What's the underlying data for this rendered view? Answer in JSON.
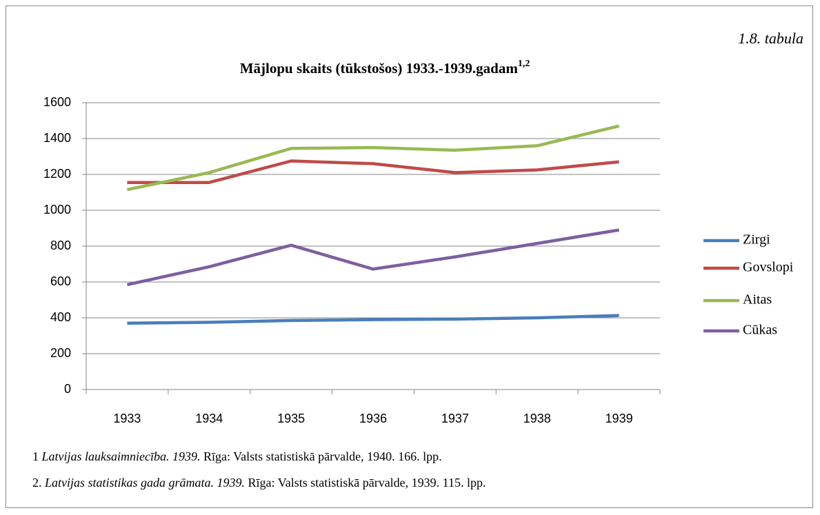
{
  "chart_data": {
    "type": "line",
    "table_label": "1.8. tabula",
    "title": "Mājlopu skaits (tūkstošos) 1933.-1939.gadam",
    "title_note": "1,2",
    "categories": [
      "1933",
      "1934",
      "1935",
      "1936",
      "1937",
      "1938",
      "1939"
    ],
    "series": [
      {
        "name": "Zirgi",
        "color": "#4a7ebb",
        "values": [
          370,
          375,
          385,
          390,
          393,
          400,
          413
        ]
      },
      {
        "name": "Govslopi",
        "color": "#be4b48",
        "values": [
          1155,
          1155,
          1275,
          1260,
          1210,
          1225,
          1270
        ]
      },
      {
        "name": "Aitas",
        "color": "#98b954",
        "values": [
          1115,
          1210,
          1345,
          1350,
          1335,
          1360,
          1470
        ]
      },
      {
        "name": "Cūkas",
        "color": "#7d5fa0",
        "values": [
          585,
          685,
          805,
          672,
          740,
          815,
          890
        ]
      }
    ],
    "ylim": [
      0,
      1600
    ],
    "yticks": [
      0,
      200,
      400,
      600,
      800,
      1000,
      1200,
      1400,
      1600
    ],
    "grid": true,
    "legend": "right"
  },
  "footnotes": [
    {
      "marker": "1",
      "source": "Latvijas lauksaimniecība. 1939.",
      "details": "Rīga: Valsts statistiskā pārvalde, 1940. 166. lpp."
    },
    {
      "marker": "2.",
      "source": "Latvijas statistikas gada grāmata. 1939.",
      "details": "Rīga: Valsts statistiskā pārvalde, 1939. 115. lpp."
    }
  ]
}
